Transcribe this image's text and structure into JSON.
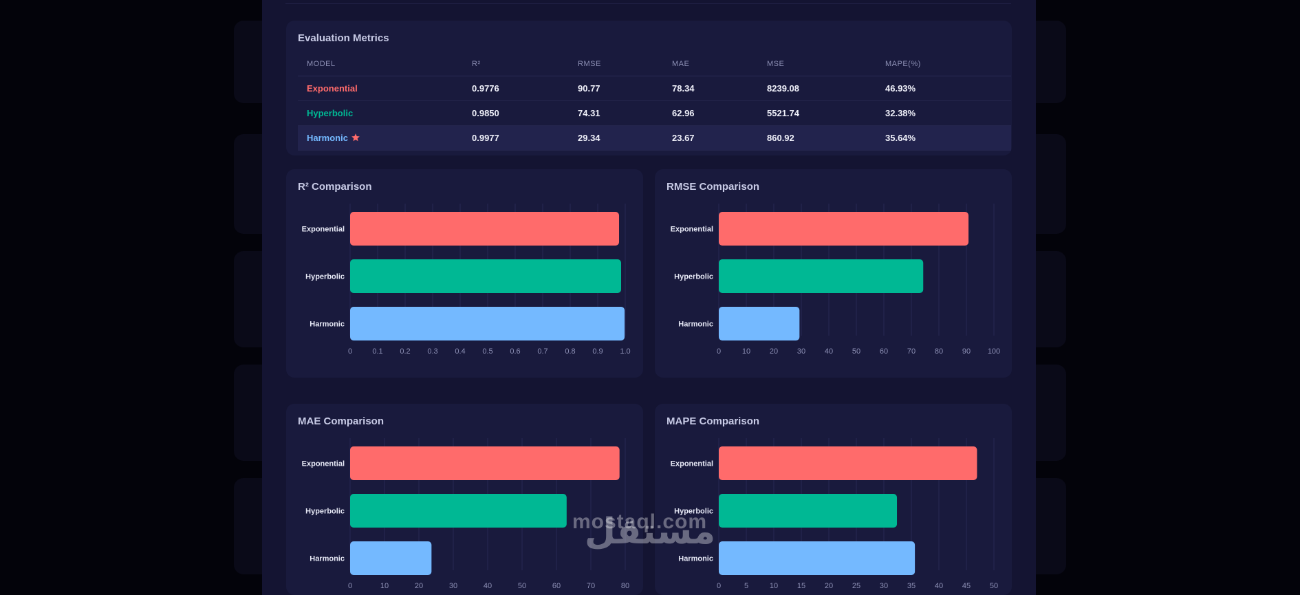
{
  "colors": {
    "exponential": "#ff6b6b",
    "hyperbolic": "#00b894",
    "harmonic": "#74b9ff",
    "star": "#ff6b6b"
  },
  "metrics": {
    "title": "Evaluation Metrics",
    "headers": [
      "MODEL",
      "R²",
      "RMSE",
      "MAE",
      "MSE",
      "MAPE(%)"
    ],
    "rows": [
      {
        "model": "Exponential",
        "r2": "0.9776",
        "rmse": "90.77",
        "mae": "78.34",
        "mse": "8239.08",
        "mape": "46.93%"
      },
      {
        "model": "Hyperbolic",
        "r2": "0.9850",
        "rmse": "74.31",
        "mae": "62.96",
        "mse": "5521.74",
        "mape": "32.38%"
      },
      {
        "model": "Harmonic",
        "r2": "0.9977",
        "rmse": "29.34",
        "mae": "23.67",
        "mse": "860.92",
        "mape": "35.64%"
      }
    ],
    "best_icon": "star-icon"
  },
  "chart_data": [
    {
      "type": "bar",
      "orientation": "horizontal",
      "title": "R² Comparison",
      "categories": [
        "Exponential",
        "Hyperbolic",
        "Harmonic"
      ],
      "values": [
        0.9776,
        0.985,
        0.9977
      ],
      "xlim": [
        0,
        1.0
      ],
      "ticks": [
        0,
        0.1,
        0.2,
        0.3,
        0.4,
        0.5,
        0.6,
        0.7,
        0.8,
        0.9,
        1.0
      ],
      "tick_labels": [
        "0",
        "0.1",
        "0.2",
        "0.3",
        "0.4",
        "0.5",
        "0.6",
        "0.7",
        "0.8",
        "0.9",
        "1.0"
      ],
      "grid": true
    },
    {
      "type": "bar",
      "orientation": "horizontal",
      "title": "RMSE Comparison",
      "categories": [
        "Exponential",
        "Hyperbolic",
        "Harmonic"
      ],
      "values": [
        90.77,
        74.31,
        29.34
      ],
      "xlim": [
        0,
        100
      ],
      "ticks": [
        0,
        10,
        20,
        30,
        40,
        50,
        60,
        70,
        80,
        90,
        100
      ],
      "tick_labels": [
        "0",
        "10",
        "20",
        "30",
        "40",
        "50",
        "60",
        "70",
        "80",
        "90",
        "100"
      ],
      "grid": true
    },
    {
      "type": "bar",
      "orientation": "horizontal",
      "title": "MAE Comparison",
      "categories": [
        "Exponential",
        "Hyperbolic",
        "Harmonic"
      ],
      "values": [
        78.34,
        62.96,
        23.67
      ],
      "xlim": [
        0,
        80
      ],
      "ticks": [
        0,
        10,
        20,
        30,
        40,
        50,
        60,
        70,
        80
      ],
      "tick_labels": [
        "0",
        "10",
        "20",
        "30",
        "40",
        "50",
        "60",
        "70",
        "80"
      ],
      "grid": true
    },
    {
      "type": "bar",
      "orientation": "horizontal",
      "title": "MAPE Comparison",
      "categories": [
        "Exponential",
        "Hyperbolic",
        "Harmonic"
      ],
      "values": [
        46.93,
        32.38,
        35.64
      ],
      "xlim": [
        0,
        50
      ],
      "ticks": [
        0,
        5,
        10,
        15,
        20,
        25,
        30,
        35,
        40,
        45,
        50
      ],
      "tick_labels": [
        "0",
        "5",
        "10",
        "15",
        "20",
        "25",
        "30",
        "35",
        "40",
        "45",
        "50"
      ],
      "grid": true
    }
  ],
  "watermark": {
    "latin": "mostaql.com",
    "arabic": "مستقل"
  }
}
